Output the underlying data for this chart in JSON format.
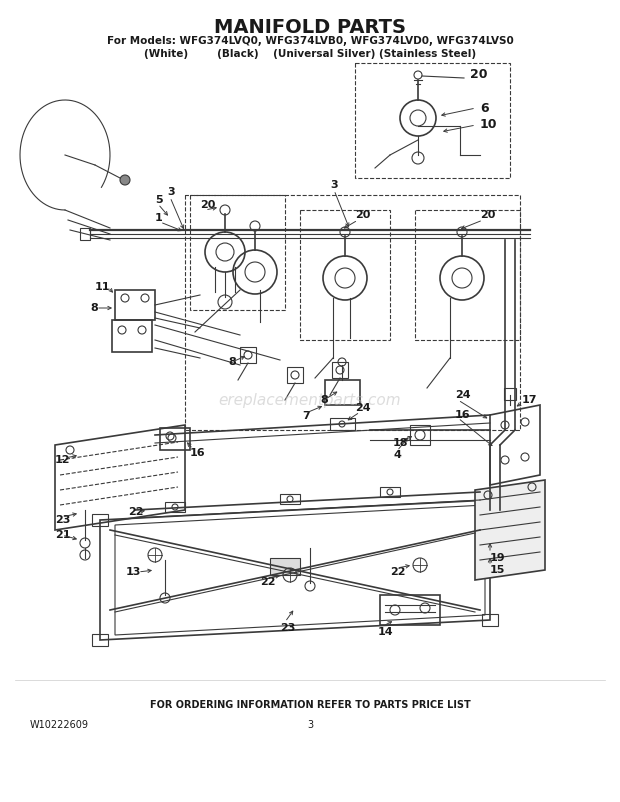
{
  "title": "MANIFOLD PARTS",
  "subtitle1": "For Models: WFG374LVQ0, WFG374LVB0, WFG374LVD0, WFG374LVS0",
  "subtitle2": "(White)        (Black)    (Universal Silver) (Stainless Steel)",
  "footer_text": "FOR ORDERING INFORMATION REFER TO PARTS PRICE LIST",
  "doc_number": "W10222609",
  "page_number": "3",
  "bg_color": "#ffffff",
  "text_color": "#1a1a1a",
  "diagram_color": "#3a3a3a",
  "fig_width": 6.2,
  "fig_height": 8.02,
  "dpi": 100,
  "watermark": "ereplacementparts.com",
  "watermark_color": "#bbbbbb"
}
